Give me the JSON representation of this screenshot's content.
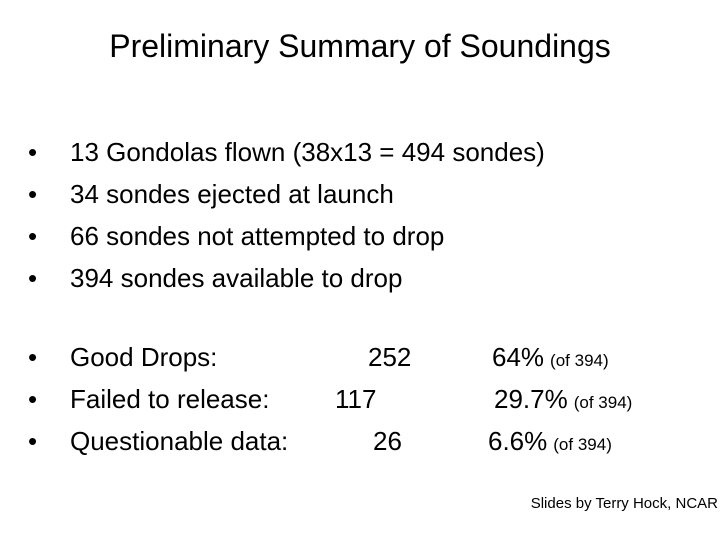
{
  "slide": {
    "title": "Preliminary Summary of Soundings",
    "bullet_char": "•",
    "summary_items": [
      "13 Gondolas flown (38x13 = 494 sondes)",
      "34 sondes ejected at launch",
      "66 sondes not attempted to drop",
      "394 sondes available to drop"
    ],
    "results": [
      {
        "label": "Good Drops:",
        "count": "252",
        "percent": "64%",
        "of": "(of 394)"
      },
      {
        "label": "Failed to release:",
        "count": "117",
        "percent": "29.7%",
        "of": "(of 394)"
      },
      {
        "label": "Questionable data:",
        "count": "26",
        "percent": "6.6%",
        "of": "(of 394)"
      }
    ],
    "credit": "Slides by Terry Hock, NCAR"
  }
}
